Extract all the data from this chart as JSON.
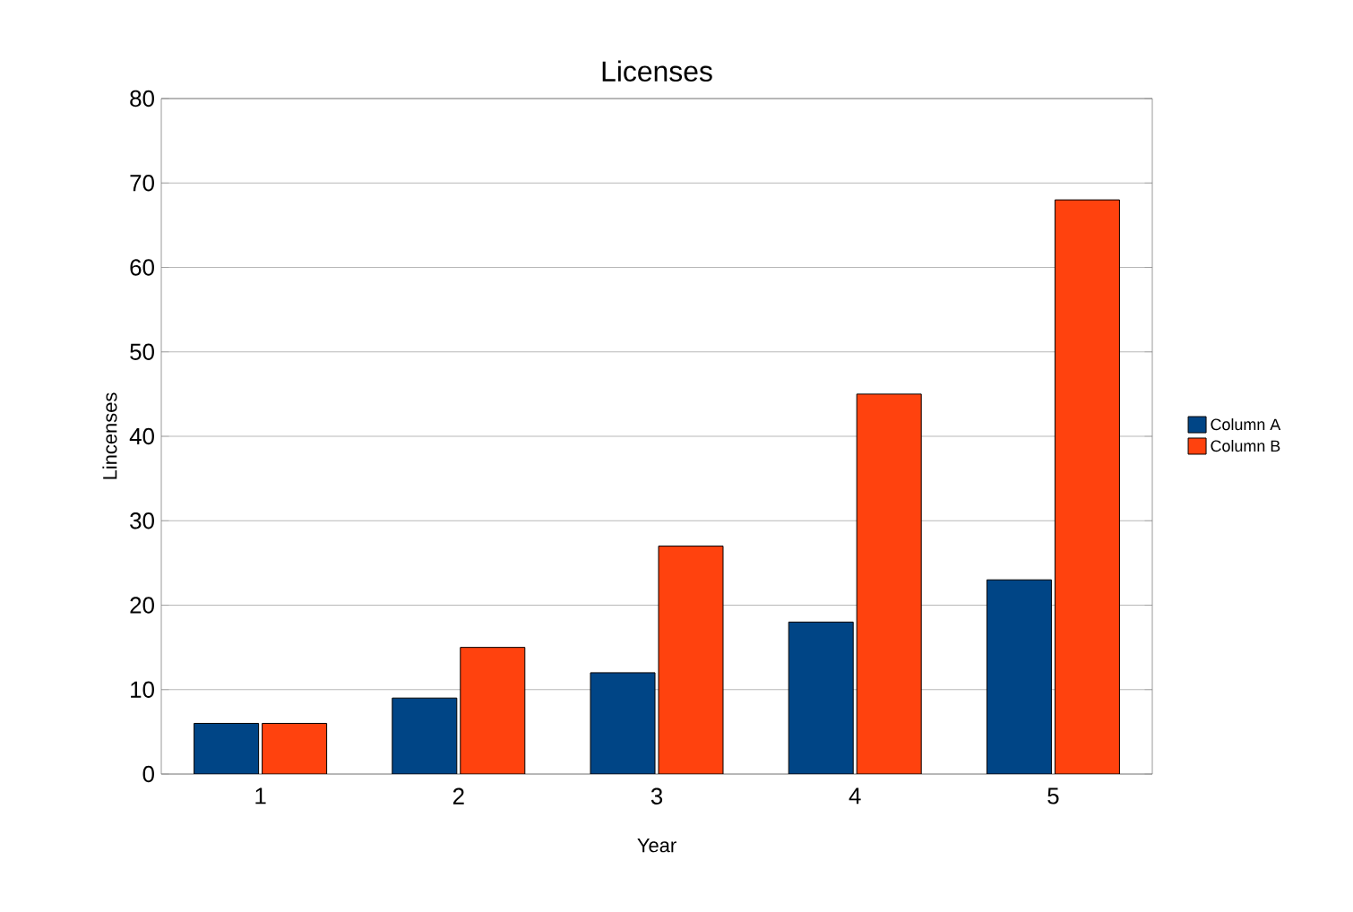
{
  "chart_data": {
    "type": "bar",
    "title": "Licenses",
    "xlabel": "Year",
    "ylabel": "Lincenses",
    "categories": [
      "1",
      "2",
      "3",
      "4",
      "5"
    ],
    "series": [
      {
        "name": "Column A",
        "color": "#004586",
        "values": [
          6,
          9,
          12,
          18,
          23
        ]
      },
      {
        "name": "Column B",
        "color": "#ff420e",
        "values": [
          6,
          15,
          27,
          45,
          68
        ]
      }
    ],
    "ylim": [
      0,
      80
    ],
    "yticks": [
      0,
      10,
      20,
      30,
      40,
      50,
      60,
      70,
      80
    ],
    "grid": "y",
    "legend": "right"
  }
}
